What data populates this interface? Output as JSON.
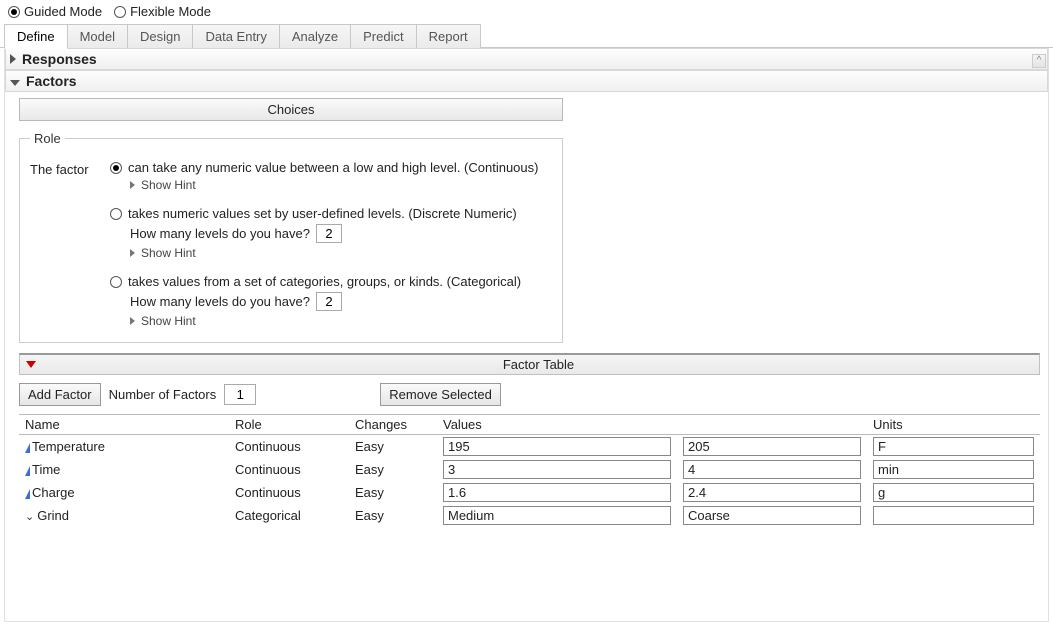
{
  "modes": {
    "guided": "Guided Mode",
    "flexible": "Flexible Mode",
    "selected": "guided"
  },
  "tabs": [
    "Define",
    "Model",
    "Design",
    "Data Entry",
    "Analyze",
    "Predict",
    "Report"
  ],
  "active_tab": "Define",
  "sections": {
    "responses": "Responses",
    "factors": "Factors"
  },
  "choices_button": "Choices",
  "role": {
    "legend": "Role",
    "label": "The factor",
    "options": {
      "continuous": "can take any numeric value between a low and high level. (Continuous)",
      "discrete": "takes numeric values set by user-defined levels. (Discrete Numeric)",
      "categorical": "takes values from a set of categories, groups, or kinds. (Categorical)"
    },
    "selected": "continuous",
    "levels_prompt": "How many levels do you have?",
    "discrete_levels": "2",
    "categorical_levels": "2",
    "show_hint": "Show Hint"
  },
  "factor_table_header": "Factor Table",
  "buttons": {
    "add_factor": "Add Factor",
    "remove_selected": "Remove Selected"
  },
  "num_factors_label": "Number of Factors",
  "num_factors": "1",
  "table": {
    "headers": {
      "name": "Name",
      "role": "Role",
      "changes": "Changes",
      "values": "Values",
      "units": "Units"
    },
    "rows": [
      {
        "icon": "blue-tri",
        "name": "Temperature",
        "role": "Continuous",
        "changes": "Easy",
        "v1": "195",
        "v2": "205",
        "units": "F"
      },
      {
        "icon": "blue-tri",
        "name": "Time",
        "role": "Continuous",
        "changes": "Easy",
        "v1": "3",
        "v2": "4",
        "units": "min"
      },
      {
        "icon": "blue-tri",
        "name": "Charge",
        "role": "Continuous",
        "changes": "Easy",
        "v1": "1.6",
        "v2": "2.4",
        "units": "g"
      },
      {
        "icon": "down-caret",
        "name": "Grind",
        "role": "Categorical",
        "changes": "Easy",
        "v1": "Medium",
        "v2": "Coarse",
        "units": ""
      }
    ]
  }
}
